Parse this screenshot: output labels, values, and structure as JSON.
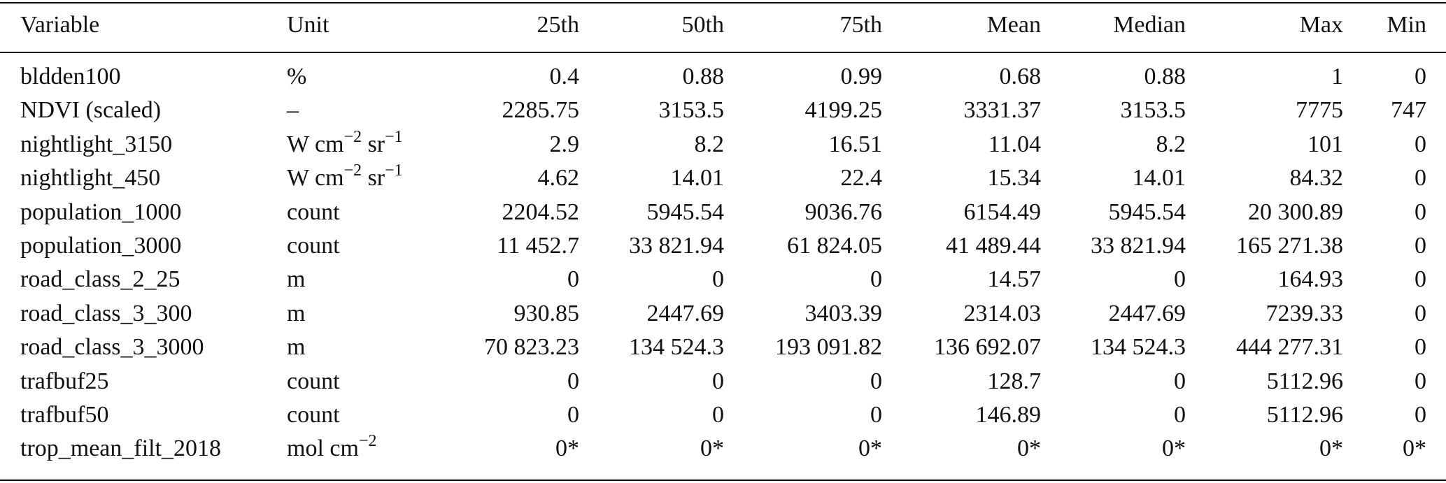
{
  "table": {
    "header": [
      "Variable",
      "Unit",
      "25th",
      "50th",
      "75th",
      "Mean",
      "Median",
      "Max",
      "Min"
    ],
    "rows": [
      [
        "bldden100",
        [
          "%"
        ],
        "0.4",
        "0.88",
        "0.99",
        "0.68",
        "0.88",
        "1",
        "0"
      ],
      [
        "NDVI (scaled)",
        [
          "–"
        ],
        "2285.75",
        "3153.5",
        "4199.25",
        "3331.37",
        "3153.5",
        "7775",
        "747"
      ],
      [
        "nightlight_3150",
        [
          "W cm",
          "−2",
          " sr",
          "−1"
        ],
        "2.9",
        "8.2",
        "16.51",
        "11.04",
        "8.2",
        "101",
        "0"
      ],
      [
        "nightlight_450",
        [
          "W cm",
          "−2",
          " sr",
          "−1"
        ],
        "4.62",
        "14.01",
        "22.4",
        "15.34",
        "14.01",
        "84.32",
        "0"
      ],
      [
        "population_1000",
        [
          "count"
        ],
        "2204.52",
        "5945.54",
        "9036.76",
        "6154.49",
        "5945.54",
        "20 300.89",
        "0"
      ],
      [
        "population_3000",
        [
          "count"
        ],
        "11 452.7",
        "33 821.94",
        "61 824.05",
        "41 489.44",
        "33 821.94",
        "165 271.38",
        "0"
      ],
      [
        "road_class_2_25",
        [
          "m"
        ],
        "0",
        "0",
        "0",
        "14.57",
        "0",
        "164.93",
        "0"
      ],
      [
        "road_class_3_300",
        [
          "m"
        ],
        "930.85",
        "2447.69",
        "3403.39",
        "2314.03",
        "2447.69",
        "7239.33",
        "0"
      ],
      [
        "road_class_3_3000",
        [
          "m"
        ],
        "70 823.23",
        "134 524.3",
        "193 091.82",
        "136 692.07",
        "134 524.3",
        "444 277.31",
        "0"
      ],
      [
        "trafbuf25",
        [
          "count"
        ],
        "0",
        "0",
        "0",
        "128.7",
        "0",
        "5112.96",
        "0"
      ],
      [
        "trafbuf50",
        [
          "count"
        ],
        "0",
        "0",
        "0",
        "146.89",
        "0",
        "5112.96",
        "0"
      ],
      [
        "trop_mean_filt_2018",
        [
          "mol cm",
          "−2"
        ],
        "0*",
        "0*",
        "0*",
        "0*",
        "0*",
        "0*",
        "0*"
      ]
    ]
  }
}
